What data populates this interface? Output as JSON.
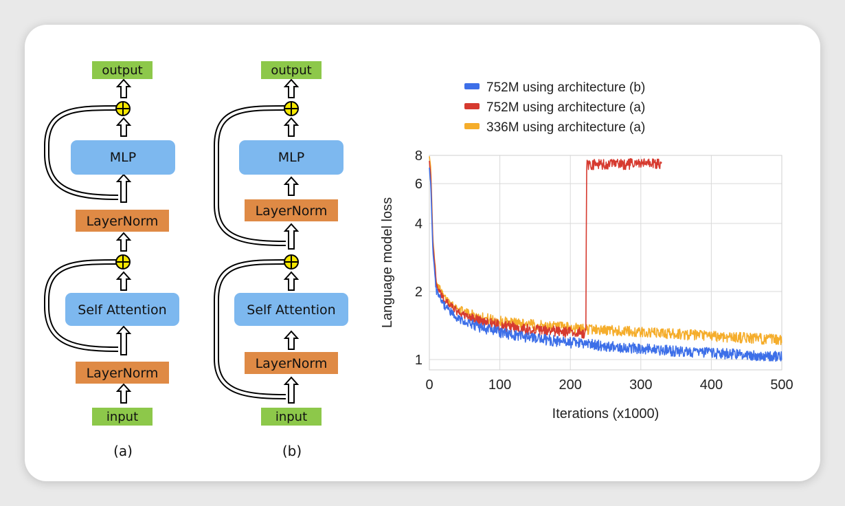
{
  "diagram_a": {
    "output": "output",
    "mlp": "MLP",
    "layernorm_top": "LayerNorm",
    "self_attention": "Self Attention",
    "layernorm_bottom": "LayerNorm",
    "input": "input",
    "caption": "(a)"
  },
  "diagram_b": {
    "output": "output",
    "mlp": "MLP",
    "layernorm_top": "LayerNorm",
    "self_attention": "Self Attention",
    "layernorm_bottom": "LayerNorm",
    "input": "input",
    "caption": "(b)"
  },
  "colors": {
    "io_green": "#8dc84a",
    "block_blue": "#7db8ef",
    "norm_orange": "#df8a45",
    "add_yellow": "#f5e600"
  },
  "chart_data": {
    "type": "line",
    "title": "",
    "xlabel": "Iterations (x1000)",
    "ylabel": "Language model loss",
    "xlim": [
      0,
      500
    ],
    "ylim": [
      0.9,
      8
    ],
    "yscale": "log",
    "x_ticks": [
      0,
      100,
      200,
      300,
      400,
      500
    ],
    "y_ticks": [
      1,
      2,
      4,
      6,
      8
    ],
    "grid": true,
    "legend_position": "top",
    "series": [
      {
        "name": "752M using architecture (b)",
        "color": "#3d6fe8",
        "x": [
          0,
          2,
          5,
          10,
          20,
          40,
          60,
          80,
          100,
          150,
          200,
          250,
          300,
          350,
          400,
          450,
          500
        ],
        "y": [
          7.0,
          6.0,
          3.0,
          2.0,
          1.75,
          1.52,
          1.43,
          1.37,
          1.32,
          1.24,
          1.19,
          1.15,
          1.12,
          1.09,
          1.07,
          1.05,
          1.03
        ]
      },
      {
        "name": "752M using architecture (a)",
        "color": "#d63a2f",
        "x": [
          0,
          2,
          5,
          10,
          20,
          40,
          60,
          80,
          100,
          150,
          200,
          222,
          223,
          224,
          250,
          300,
          330
        ],
        "y": [
          7.5,
          6.5,
          3.3,
          2.15,
          1.85,
          1.62,
          1.52,
          1.46,
          1.42,
          1.35,
          1.32,
          1.31,
          7.2,
          7.3,
          7.3,
          7.35,
          7.4
        ]
      },
      {
        "name": "336M using architecture (a)",
        "color": "#f5ad2b",
        "x": [
          0,
          2,
          5,
          10,
          20,
          40,
          60,
          80,
          100,
          150,
          200,
          250,
          300,
          350,
          400,
          450,
          500
        ],
        "y": [
          8.0,
          7.0,
          3.4,
          2.2,
          1.9,
          1.68,
          1.58,
          1.52,
          1.48,
          1.42,
          1.38,
          1.35,
          1.32,
          1.3,
          1.27,
          1.25,
          1.22
        ]
      }
    ]
  }
}
